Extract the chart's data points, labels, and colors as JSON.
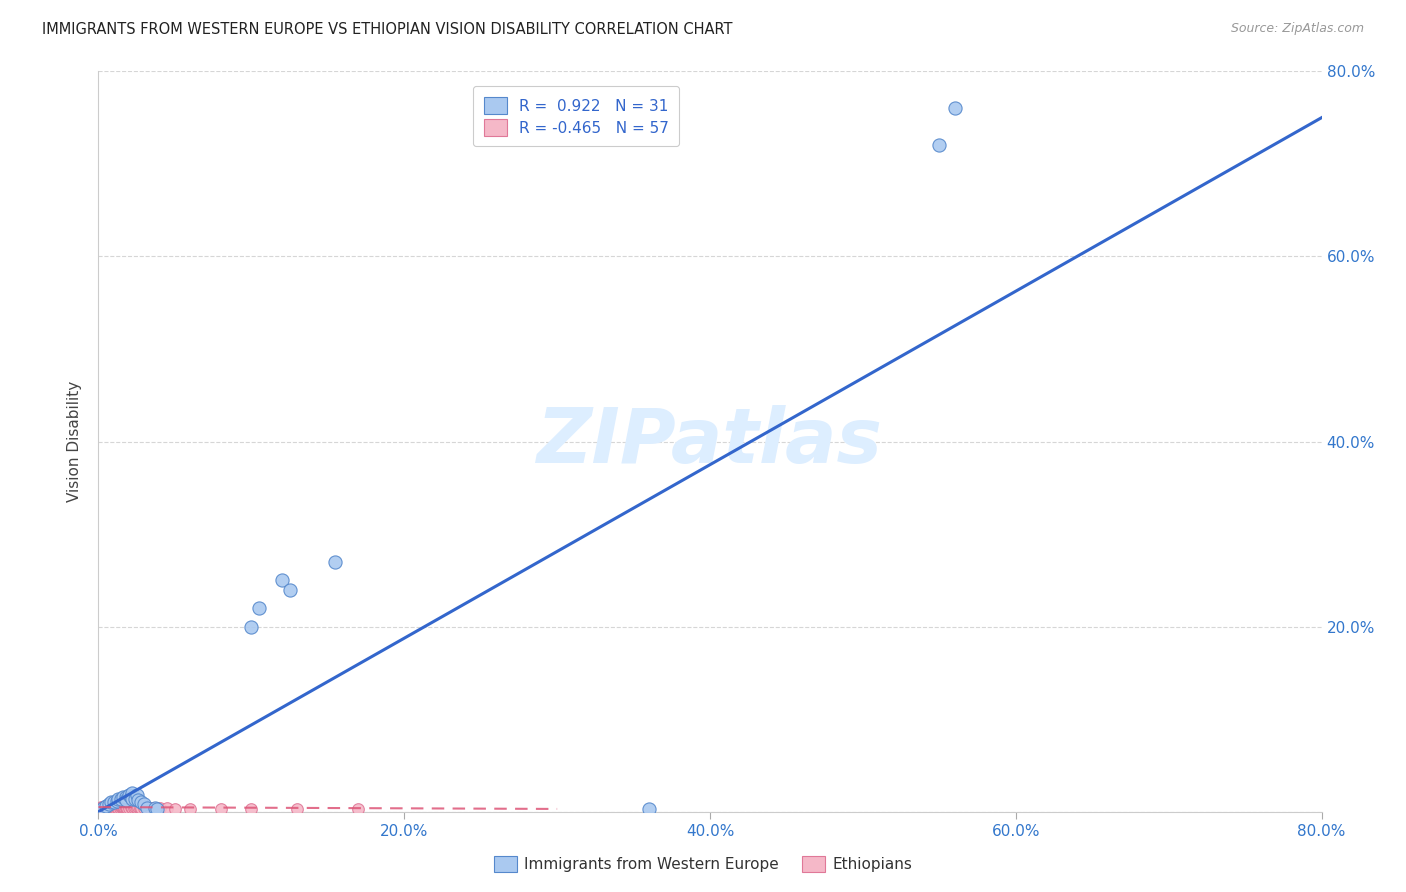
{
  "title": "IMMIGRANTS FROM WESTERN EUROPE VS ETHIOPIAN VISION DISABILITY CORRELATION CHART",
  "source": "Source: ZipAtlas.com",
  "ylabel": "Vision Disability",
  "xlim": [
    0.0,
    0.8
  ],
  "ylim": [
    0.0,
    0.8
  ],
  "xticks": [
    0.0,
    0.2,
    0.4,
    0.6,
    0.8
  ],
  "yticks": [
    0.2,
    0.4,
    0.6,
    0.8
  ],
  "xtick_labels": [
    "0.0%",
    "20.0%",
    "40.0%",
    "60.0%",
    "80.0%"
  ],
  "ytick_labels_right": [
    "20.0%",
    "40.0%",
    "60.0%",
    "80.0%"
  ],
  "blue_R": 0.922,
  "blue_N": 31,
  "pink_R": -0.465,
  "pink_N": 57,
  "blue_color": "#aac9f0",
  "blue_edge_color": "#5588cc",
  "pink_color": "#f5b8c8",
  "pink_edge_color": "#e07898",
  "trend_blue_color": "#3366cc",
  "trend_pink_color": "#dd5577",
  "legend_box_blue": "#aac9f0",
  "legend_box_pink": "#f5b8c8",
  "legend_text_color": "#3366cc",
  "watermark_color": "#ddeeff",
  "background_color": "#ffffff",
  "grid_color": "#cccccc",
  "title_color": "#222222",
  "axis_label_color": "#444444",
  "blue_points": [
    [
      0.003,
      0.004
    ],
    [
      0.005,
      0.006
    ],
    [
      0.007,
      0.008
    ],
    [
      0.008,
      0.01
    ],
    [
      0.01,
      0.01
    ],
    [
      0.012,
      0.012
    ],
    [
      0.013,
      0.014
    ],
    [
      0.015,
      0.014
    ],
    [
      0.016,
      0.016
    ],
    [
      0.018,
      0.016
    ],
    [
      0.018,
      0.013
    ],
    [
      0.02,
      0.018
    ],
    [
      0.021,
      0.016
    ],
    [
      0.022,
      0.02
    ],
    [
      0.022,
      0.014
    ],
    [
      0.024,
      0.014
    ],
    [
      0.025,
      0.018
    ],
    [
      0.026,
      0.013
    ],
    [
      0.028,
      0.01
    ],
    [
      0.03,
      0.008
    ],
    [
      0.032,
      0.004
    ],
    [
      0.037,
      0.004
    ],
    [
      0.038,
      0.003
    ],
    [
      0.1,
      0.2
    ],
    [
      0.105,
      0.22
    ],
    [
      0.12,
      0.25
    ],
    [
      0.125,
      0.24
    ],
    [
      0.155,
      0.27
    ],
    [
      0.36,
      0.003
    ],
    [
      0.55,
      0.72
    ],
    [
      0.56,
      0.76
    ]
  ],
  "pink_points": [
    [
      0.001,
      0.004
    ],
    [
      0.002,
      0.005
    ],
    [
      0.002,
      0.004
    ],
    [
      0.003,
      0.005
    ],
    [
      0.003,
      0.004
    ],
    [
      0.004,
      0.005
    ],
    [
      0.004,
      0.004
    ],
    [
      0.005,
      0.006
    ],
    [
      0.005,
      0.004
    ],
    [
      0.006,
      0.005
    ],
    [
      0.006,
      0.004
    ],
    [
      0.007,
      0.006
    ],
    [
      0.007,
      0.004
    ],
    [
      0.008,
      0.005
    ],
    [
      0.008,
      0.004
    ],
    [
      0.009,
      0.006
    ],
    [
      0.009,
      0.004
    ],
    [
      0.01,
      0.005
    ],
    [
      0.01,
      0.004
    ],
    [
      0.011,
      0.005
    ],
    [
      0.011,
      0.004
    ],
    [
      0.012,
      0.005
    ],
    [
      0.012,
      0.004
    ],
    [
      0.013,
      0.006
    ],
    [
      0.013,
      0.004
    ],
    [
      0.014,
      0.005
    ],
    [
      0.014,
      0.004
    ],
    [
      0.015,
      0.005
    ],
    [
      0.015,
      0.006
    ],
    [
      0.016,
      0.004
    ],
    [
      0.016,
      0.005
    ],
    [
      0.017,
      0.004
    ],
    [
      0.017,
      0.005
    ],
    [
      0.018,
      0.004
    ],
    [
      0.018,
      0.005
    ],
    [
      0.019,
      0.004
    ],
    [
      0.02,
      0.004
    ],
    [
      0.021,
      0.005
    ],
    [
      0.022,
      0.004
    ],
    [
      0.023,
      0.004
    ],
    [
      0.024,
      0.005
    ],
    [
      0.025,
      0.004
    ],
    [
      0.026,
      0.005
    ],
    [
      0.027,
      0.004
    ],
    [
      0.028,
      0.004
    ],
    [
      0.03,
      0.004
    ],
    [
      0.032,
      0.004
    ],
    [
      0.034,
      0.004
    ],
    [
      0.036,
      0.004
    ],
    [
      0.04,
      0.004
    ],
    [
      0.045,
      0.004
    ],
    [
      0.05,
      0.003
    ],
    [
      0.06,
      0.003
    ],
    [
      0.08,
      0.003
    ],
    [
      0.1,
      0.003
    ],
    [
      0.13,
      0.003
    ],
    [
      0.17,
      0.003
    ]
  ],
  "blue_trend_x": [
    0.0,
    0.8
  ],
  "blue_trend_y": [
    0.0,
    0.75
  ],
  "pink_trend_x": [
    0.0,
    0.3
  ],
  "pink_trend_y": [
    0.005,
    0.003
  ]
}
